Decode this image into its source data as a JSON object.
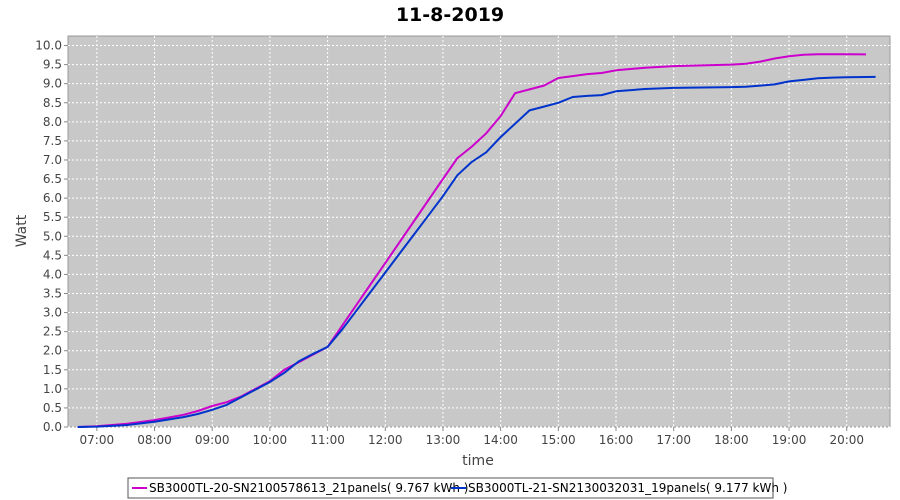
{
  "chart_data": {
    "type": "line",
    "title": "11-8-2019",
    "xlabel": "time",
    "ylabel": "Watt",
    "grid": true,
    "legend_position": "bottom",
    "x_unit": "hours",
    "xlim": [
      "06:30",
      "20:45"
    ],
    "ylim": [
      0.0,
      10.25
    ],
    "x_ticks": [
      "07:00",
      "08:00",
      "09:00",
      "10:00",
      "11:00",
      "12:00",
      "13:00",
      "14:00",
      "15:00",
      "16:00",
      "17:00",
      "18:00",
      "19:00",
      "20:00"
    ],
    "y_ticks": [
      "0.0",
      "0.5",
      "1.0",
      "1.5",
      "2.0",
      "2.5",
      "3.0",
      "3.5",
      "4.0",
      "4.5",
      "5.0",
      "5.5",
      "6.0",
      "6.5",
      "7.0",
      "7.5",
      "8.0",
      "8.5",
      "9.0",
      "9.5",
      "10.0"
    ],
    "colors": {
      "plot_background": "#c8c8c8",
      "grid": "#ffffff"
    },
    "series": [
      {
        "name": "SB3000TL-20-SN2100578613_21panels( 9.767 kWh )",
        "color": "#cc00cc",
        "x": [
          "06:40",
          "07:00",
          "07:30",
          "08:00",
          "08:30",
          "08:45",
          "09:00",
          "09:15",
          "09:30",
          "09:45",
          "10:00",
          "10:15",
          "10:30",
          "10:45",
          "11:00",
          "11:15",
          "11:30",
          "11:45",
          "12:00",
          "12:15",
          "12:30",
          "12:45",
          "13:00",
          "13:15",
          "13:30",
          "13:45",
          "14:00",
          "14:15",
          "14:30",
          "14:45",
          "15:00",
          "15:15",
          "15:30",
          "15:45",
          "16:00",
          "16:30",
          "17:00",
          "17:30",
          "18:00",
          "18:15",
          "18:30",
          "18:45",
          "19:00",
          "19:15",
          "19:30",
          "19:45",
          "20:00",
          "20:20"
        ],
        "values": [
          0.0,
          0.02,
          0.08,
          0.18,
          0.32,
          0.42,
          0.55,
          0.65,
          0.8,
          1.0,
          1.2,
          1.5,
          1.7,
          1.9,
          2.1,
          2.65,
          3.2,
          3.75,
          4.3,
          4.85,
          5.4,
          5.95,
          6.5,
          7.05,
          7.35,
          7.7,
          8.15,
          8.75,
          8.85,
          8.95,
          9.15,
          9.2,
          9.25,
          9.28,
          9.35,
          9.42,
          9.46,
          9.48,
          9.5,
          9.52,
          9.58,
          9.66,
          9.72,
          9.76,
          9.77,
          9.77,
          9.77,
          9.767
        ]
      },
      {
        "name": "SB3000TL-21-SN2130032031_19panels( 9.177 kWh )",
        "color": "#0033cc",
        "x": [
          "06:40",
          "07:00",
          "07:30",
          "08:00",
          "08:30",
          "08:45",
          "09:00",
          "09:15",
          "09:30",
          "09:45",
          "10:00",
          "10:15",
          "10:30",
          "10:45",
          "11:00",
          "11:15",
          "11:30",
          "11:45",
          "12:00",
          "12:15",
          "12:30",
          "12:45",
          "13:00",
          "13:15",
          "13:30",
          "13:45",
          "14:00",
          "14:15",
          "14:30",
          "14:45",
          "15:00",
          "15:15",
          "15:30",
          "15:45",
          "16:00",
          "16:30",
          "17:00",
          "17:30",
          "18:00",
          "18:15",
          "18:30",
          "18:45",
          "19:00",
          "19:15",
          "19:30",
          "19:45",
          "20:00",
          "20:30"
        ],
        "values": [
          0.0,
          0.01,
          0.05,
          0.14,
          0.26,
          0.34,
          0.45,
          0.58,
          0.78,
          0.98,
          1.18,
          1.42,
          1.72,
          1.92,
          2.1,
          2.55,
          3.05,
          3.55,
          4.05,
          4.55,
          5.05,
          5.55,
          6.05,
          6.6,
          6.95,
          7.2,
          7.6,
          7.95,
          8.3,
          8.4,
          8.5,
          8.65,
          8.68,
          8.7,
          8.8,
          8.86,
          8.89,
          8.9,
          8.91,
          8.92,
          8.95,
          8.98,
          9.06,
          9.1,
          9.14,
          9.16,
          9.17,
          9.177
        ]
      }
    ]
  }
}
